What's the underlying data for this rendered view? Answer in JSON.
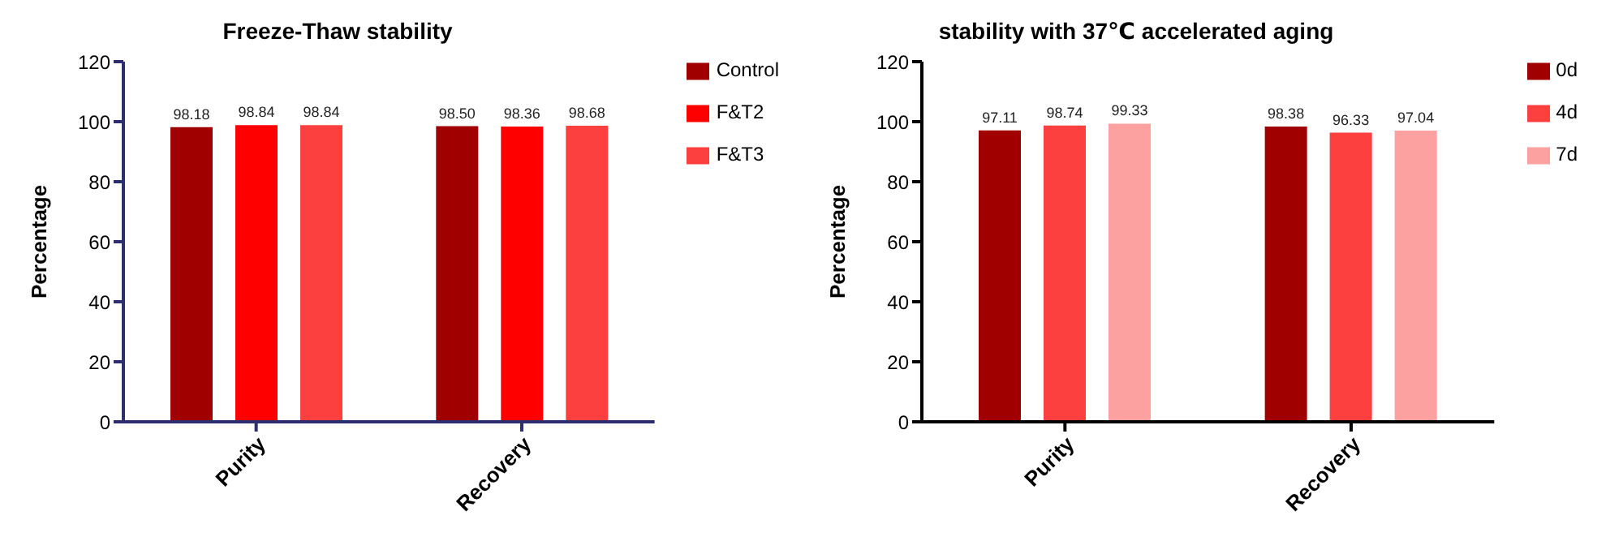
{
  "chart_data": [
    {
      "type": "bar",
      "title": "Freeze-Thaw stability",
      "ylabel": "Percentage",
      "categories": [
        "Purity",
        "Recovery"
      ],
      "series": [
        {
          "name": "Control",
          "color": "#a00000",
          "values": [
            98.18,
            98.5
          ]
        },
        {
          "name": "F&T2",
          "color": "#ff0000",
          "values": [
            98.84,
            98.36
          ]
        },
        {
          "name": "F&T3",
          "color": "#fc4040",
          "values": [
            98.84,
            98.68
          ]
        }
      ],
      "ylim": [
        0,
        120
      ],
      "yticks": [
        0,
        20,
        40,
        60,
        80,
        100,
        120
      ],
      "grid": false,
      "legend": "top right",
      "value_labels": [
        [
          "98.18",
          "98.50"
        ],
        [
          "98.84",
          "98.36"
        ],
        [
          "98.84",
          "98.68"
        ]
      ]
    },
    {
      "type": "bar",
      "title": "stability with 37℃ accelerated aging",
      "ylabel": "Percentage",
      "categories": [
        "Purity",
        "Recovery"
      ],
      "series": [
        {
          "name": "0d",
          "color": "#a00000",
          "values": [
            97.11,
            98.38
          ]
        },
        {
          "name": "4d",
          "color": "#fc4040",
          "values": [
            98.74,
            96.33
          ]
        },
        {
          "name": "7d",
          "color": "#fca0a0",
          "values": [
            99.33,
            97.04
          ]
        }
      ],
      "ylim": [
        0,
        120
      ],
      "yticks": [
        0,
        20,
        40,
        60,
        80,
        100,
        120
      ],
      "grid": false,
      "legend": "top right",
      "value_labels": [
        [
          "97.11",
          "98.38"
        ],
        [
          "98.74",
          "96.33"
        ],
        [
          "99.33",
          "97.04"
        ]
      ]
    }
  ]
}
